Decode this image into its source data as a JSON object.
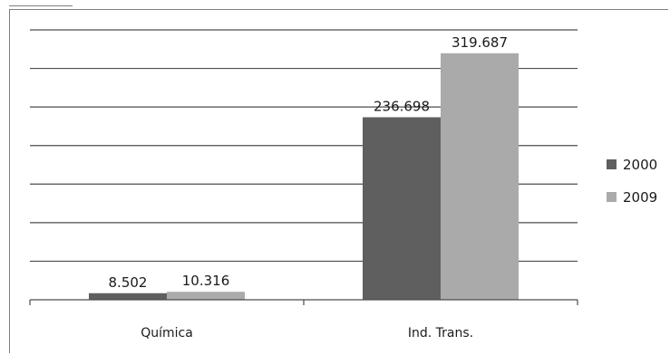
{
  "chart_data": {
    "type": "bar",
    "title": "",
    "xlabel": "",
    "ylabel": "",
    "categories": [
      "Química",
      "Ind. Trans."
    ],
    "series": [
      {
        "name": "2000",
        "values": [
          8502,
          236698
        ],
        "labels": [
          "8.502",
          "236.698"
        ],
        "color": "#5f5f5f"
      },
      {
        "name": "2009",
        "values": [
          10316,
          319687
        ],
        "labels": [
          "10.316",
          "319.687"
        ],
        "color": "#aaaaaa"
      }
    ],
    "ylim": [
      0,
      350000
    ],
    "y_gridline_step": 50000,
    "grid": true,
    "legend_position": "right"
  }
}
